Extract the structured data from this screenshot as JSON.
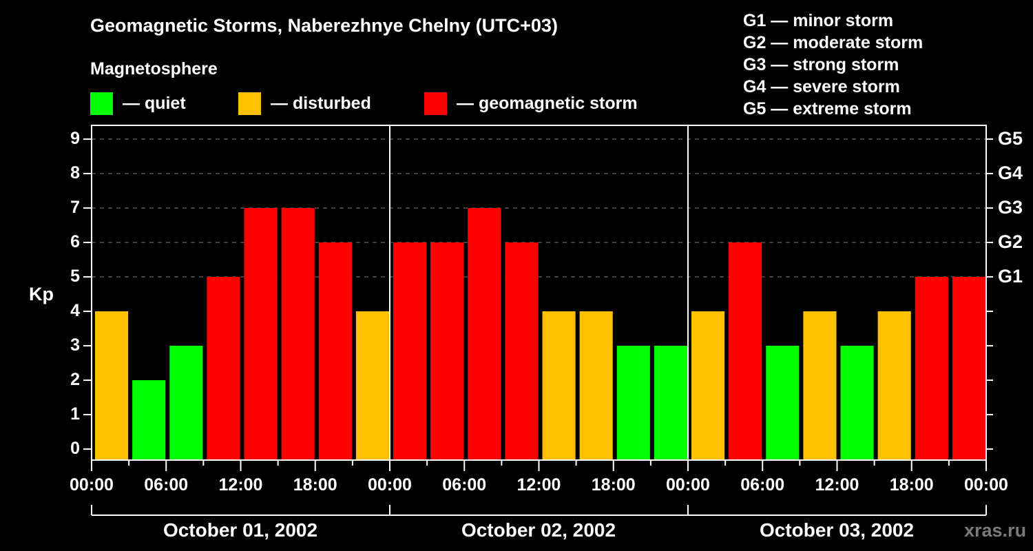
{
  "title": "Geomagnetic Storms, Naberezhnye Chelny (UTC+03)",
  "legend": {
    "heading": "Magnetosphere",
    "items": [
      {
        "label": "— quiet",
        "color": "#00ff00"
      },
      {
        "label": "— disturbed",
        "color": "#ffc000"
      },
      {
        "label": "— geomagnetic storm",
        "color": "#ff0000"
      }
    ]
  },
  "g_scale_legend": [
    "G1 — minor storm",
    "G2 — moderate storm",
    "G3 — strong storm",
    "G4 — severe storm",
    "G5 — extreme storm"
  ],
  "axis": {
    "y_label": "Kp",
    "y_ticks": [
      "0",
      "1",
      "2",
      "3",
      "4",
      "5",
      "6",
      "7",
      "8",
      "9"
    ],
    "y2_ticks": [
      {
        "kp": 5,
        "label": "G1"
      },
      {
        "kp": 6,
        "label": "G2"
      },
      {
        "kp": 7,
        "label": "G3"
      },
      {
        "kp": 8,
        "label": "G4"
      },
      {
        "kp": 9,
        "label": "G5"
      }
    ],
    "x_ticks": [
      "00:00",
      "06:00",
      "12:00",
      "18:00",
      "00:00",
      "06:00",
      "12:00",
      "18:00",
      "00:00",
      "06:00",
      "12:00",
      "18:00",
      "00:00"
    ],
    "days": [
      "October 01, 2002",
      "October 02, 2002",
      "October 03, 2002"
    ]
  },
  "watermark": "xras.ru",
  "colors": {
    "quiet": "#00ff00",
    "disturbed": "#ffc000",
    "storm": "#ff0000",
    "grid": "#808080",
    "axis": "#ffffff",
    "background": "#000000"
  },
  "chart_data": {
    "type": "bar",
    "title": "Geomagnetic Storms, Naberezhnye Chelny (UTC+03)",
    "xlabel": "",
    "ylabel": "Kp",
    "ylim": [
      0,
      9
    ],
    "grid": "horizontal dashed at Kp 5-9",
    "legend_position": "top",
    "interval_hours": 3,
    "categories": [
      "Oct 01 00:00",
      "Oct 01 03:00",
      "Oct 01 06:00",
      "Oct 01 09:00",
      "Oct 01 12:00",
      "Oct 01 15:00",
      "Oct 01 18:00",
      "Oct 01 21:00",
      "Oct 02 00:00",
      "Oct 02 03:00",
      "Oct 02 06:00",
      "Oct 02 09:00",
      "Oct 02 12:00",
      "Oct 02 15:00",
      "Oct 02 18:00",
      "Oct 02 21:00",
      "Oct 03 00:00",
      "Oct 03 03:00",
      "Oct 03 06:00",
      "Oct 03 09:00",
      "Oct 03 12:00",
      "Oct 03 15:00",
      "Oct 03 18:00",
      "Oct 03 21:00"
    ],
    "values": [
      4,
      2,
      3,
      5,
      7,
      7,
      6,
      4,
      6,
      6,
      7,
      6,
      4,
      4,
      3,
      3,
      4,
      6,
      3,
      4,
      3,
      4,
      5,
      5
    ],
    "status": [
      "disturbed",
      "quiet",
      "quiet",
      "storm",
      "storm",
      "storm",
      "storm",
      "disturbed",
      "storm",
      "storm",
      "storm",
      "storm",
      "disturbed",
      "disturbed",
      "quiet",
      "quiet",
      "disturbed",
      "storm",
      "quiet",
      "disturbed",
      "quiet",
      "disturbed",
      "storm",
      "storm"
    ],
    "secondary_axis": {
      "G1": 5,
      "G2": 6,
      "G3": 7,
      "G4": 8,
      "G5": 9
    }
  }
}
